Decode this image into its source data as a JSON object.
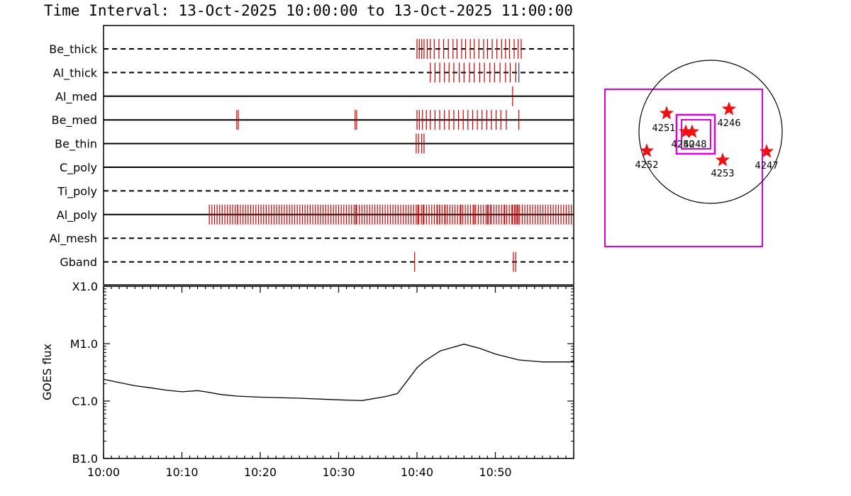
{
  "title": "Time Interval: 13-Oct-2025 10:00:00 to 13-Oct-2025 11:00:00",
  "colors": {
    "event_tick": "#cc0000",
    "blue_tick": "#2233cc",
    "fov": "#dd00dd",
    "star": "#ee1111",
    "axis": "#000000"
  },
  "chart_data": [
    {
      "type": "timeline",
      "x_range_minutes": [
        0,
        60
      ],
      "rows": [
        {
          "label": "Be_thick",
          "style": "dashed",
          "ticks": [
            40.0,
            40.3,
            40.6,
            40.9,
            41.3,
            41.7,
            42.2,
            42.8,
            43.4,
            44.0,
            44.6,
            45.1,
            45.7,
            46.2,
            46.8,
            47.3,
            47.9,
            48.5,
            49.0,
            49.6,
            50.2,
            50.8,
            51.3,
            51.8,
            52.4,
            52.9,
            53.3
          ]
        },
        {
          "label": "Al_thick",
          "style": "dashed",
          "ticks": [
            41.7,
            42.3,
            42.9,
            43.5,
            44.1,
            44.7,
            45.4,
            46.0,
            46.7,
            47.3,
            48.0,
            48.6,
            49.3,
            49.9,
            50.6,
            51.3,
            51.9,
            52.6
          ],
          "blue_ticks": [
            53.0
          ]
        },
        {
          "label": "Al_med",
          "style": "solid",
          "ticks": [
            52.2
          ]
        },
        {
          "label": "Be_med",
          "style": "solid",
          "ticks": [
            17.0,
            17.2,
            32.1,
            32.3,
            40.0,
            40.3,
            40.7,
            41.2,
            41.7,
            42.3,
            42.9,
            43.5,
            44.1,
            44.7,
            45.3,
            45.9,
            46.5,
            47.1,
            47.7,
            48.3,
            48.9,
            49.5,
            50.1,
            50.7,
            51.4,
            53.0
          ]
        },
        {
          "label": "Be_thin",
          "style": "solid",
          "ticks": [
            39.9,
            40.2,
            40.6,
            40.9
          ]
        },
        {
          "label": "C_poly",
          "style": "solid",
          "ticks": []
        },
        {
          "label": "Ti_poly",
          "style": "dashed",
          "ticks": []
        },
        {
          "label": "Al_poly",
          "style": "solid",
          "tick_range": [
            13.5,
            59.8
          ],
          "tick_spacing": 0.33,
          "extra_ticks": [
            17.1,
            32.2,
            40.1,
            40.8,
            42.6,
            42.9,
            43.6,
            45.6,
            47.3,
            49.0,
            49.4,
            51.2,
            52.2,
            52.6,
            52.9
          ]
        },
        {
          "label": "Al_mesh",
          "style": "dashed",
          "ticks": []
        },
        {
          "label": "Gband",
          "style": "dashed",
          "ticks": [
            39.7,
            52.3,
            52.6
          ]
        }
      ]
    },
    {
      "type": "line",
      "ylabel": "GOES flux",
      "y_ticks": [
        "B1.0",
        "C1.0",
        "M1.0",
        "X1.0"
      ],
      "y_log_range": [
        -7,
        -4
      ],
      "x_ticks": [
        "10:00",
        "10:10",
        "10:20",
        "10:30",
        "10:40",
        "10:50"
      ],
      "x_tick_minutes": [
        0,
        10,
        20,
        30,
        40,
        50
      ],
      "x_range_minutes": [
        0,
        60
      ],
      "series": [
        {
          "x": [
            0,
            2,
            4,
            6,
            8,
            10,
            12,
            13,
            15,
            17,
            20,
            25,
            30,
            33,
            36,
            37.5,
            39,
            40,
            41,
            43,
            46,
            48,
            50,
            53,
            56,
            60
          ],
          "y": [
            2.4e-06,
            2.1e-06,
            1.85e-06,
            1.7e-06,
            1.55e-06,
            1.45e-06,
            1.52e-06,
            1.45e-06,
            1.3e-06,
            1.22e-06,
            1.17e-06,
            1.12e-06,
            1.05e-06,
            1.02e-06,
            1.2e-06,
            1.35e-06,
            2.5e-06,
            3.8e-06,
            5e-06,
            7.5e-06,
            9.8e-06,
            8.3e-06,
            6.6e-06,
            5.2e-06,
            4.8e-06,
            4.8e-06
          ]
        }
      ]
    },
    {
      "type": "scatter",
      "markers": [
        {
          "label": "4251"
        },
        {
          "label": "4246"
        },
        {
          "label": "4250"
        },
        {
          "label": "4248"
        },
        {
          "label": "4252"
        },
        {
          "label": "4247"
        },
        {
          "label": "4253"
        }
      ]
    }
  ]
}
